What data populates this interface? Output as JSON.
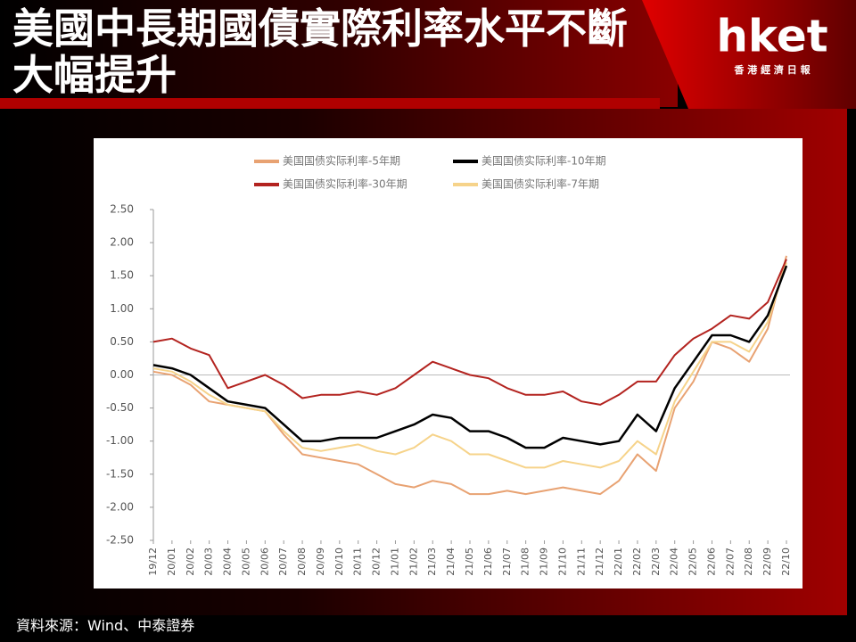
{
  "header": {
    "title": "美國中長期國債實際利率水平不斷大幅提升",
    "logo": "hket",
    "logo_subtitle": "香 港 經 濟 日 報"
  },
  "source": "資料來源：Wind、中泰證券",
  "chart_data": {
    "type": "line",
    "categories": [
      "19/12",
      "20/01",
      "20/02",
      "20/03",
      "20/04",
      "20/05",
      "20/06",
      "20/07",
      "20/08",
      "20/09",
      "20/10",
      "20/11",
      "20/12",
      "21/01",
      "21/02",
      "21/03",
      "21/04",
      "21/05",
      "21/06",
      "21/07",
      "21/08",
      "21/09",
      "21/10",
      "21/11",
      "21/12",
      "22/01",
      "22/02",
      "22/03",
      "22/04",
      "22/05",
      "22/06",
      "22/07",
      "22/08",
      "22/09",
      "22/10"
    ],
    "series": [
      {
        "name": "美国国债实际利率-5年期",
        "color": "#e8a272",
        "values": [
          0.05,
          0.0,
          -0.15,
          -0.4,
          -0.45,
          -0.5,
          -0.55,
          -0.9,
          -1.2,
          -1.25,
          -1.3,
          -1.35,
          -1.5,
          -1.65,
          -1.7,
          -1.6,
          -1.65,
          -1.8,
          -1.8,
          -1.75,
          -1.8,
          -1.75,
          -1.7,
          -1.75,
          -1.8,
          -1.6,
          -1.2,
          -1.45,
          -0.5,
          -0.1,
          0.5,
          0.4,
          0.2,
          0.7,
          1.8
        ]
      },
      {
        "name": "美国国债实际利率-10年期",
        "color": "#000000",
        "values": [
          0.15,
          0.1,
          0.0,
          -0.2,
          -0.4,
          -0.45,
          -0.5,
          -0.75,
          -1.0,
          -1.0,
          -0.95,
          -0.95,
          -0.95,
          -0.85,
          -0.75,
          -0.6,
          -0.65,
          -0.85,
          -0.85,
          -0.95,
          -1.1,
          -1.1,
          -0.95,
          -1.0,
          -1.05,
          -1.0,
          -0.6,
          -0.85,
          -0.2,
          0.2,
          0.6,
          0.6,
          0.5,
          0.9,
          1.65
        ]
      },
      {
        "name": "美国国债实际利率-30年期",
        "color": "#b3231f",
        "values": [
          0.5,
          0.55,
          0.4,
          0.3,
          -0.2,
          -0.1,
          0.0,
          -0.15,
          -0.35,
          -0.3,
          -0.3,
          -0.25,
          -0.3,
          -0.2,
          0.0,
          0.2,
          0.1,
          0.0,
          -0.05,
          -0.2,
          -0.3,
          -0.3,
          -0.25,
          -0.4,
          -0.45,
          -0.3,
          -0.1,
          -0.1,
          0.3,
          0.55,
          0.7,
          0.9,
          0.85,
          1.1,
          1.75
        ]
      },
      {
        "name": "美国国债实际利率-7年期",
        "color": "#f6d38a",
        "values": [
          0.1,
          0.05,
          -0.1,
          -0.3,
          -0.45,
          -0.5,
          -0.55,
          -0.85,
          -1.1,
          -1.15,
          -1.1,
          -1.05,
          -1.15,
          -1.2,
          -1.1,
          -0.9,
          -1.0,
          -1.2,
          -1.2,
          -1.3,
          -1.4,
          -1.4,
          -1.3,
          -1.35,
          -1.4,
          -1.3,
          -1.0,
          -1.2,
          -0.4,
          0.05,
          0.5,
          0.5,
          0.35,
          0.8,
          1.7
        ]
      }
    ],
    "ylim": [
      -2.5,
      2.5
    ],
    "yticks": [
      {
        "value": 2.5,
        "label": "2.50"
      },
      {
        "value": 2.0,
        "label": "2.00"
      },
      {
        "value": 1.5,
        "label": "1.50"
      },
      {
        "value": 1.0,
        "label": "1.00"
      },
      {
        "value": 0.5,
        "label": "0.50"
      },
      {
        "value": 0,
        "label": "0.00"
      },
      {
        "value": -0.5,
        "label": "-0.50"
      },
      {
        "value": -1.0,
        "label": "-1.00"
      },
      {
        "value": -1.5,
        "label": "-1.50"
      },
      {
        "value": -2.0,
        "label": "-2.00"
      },
      {
        "value": -2.5,
        "label": "-2.50"
      }
    ]
  }
}
